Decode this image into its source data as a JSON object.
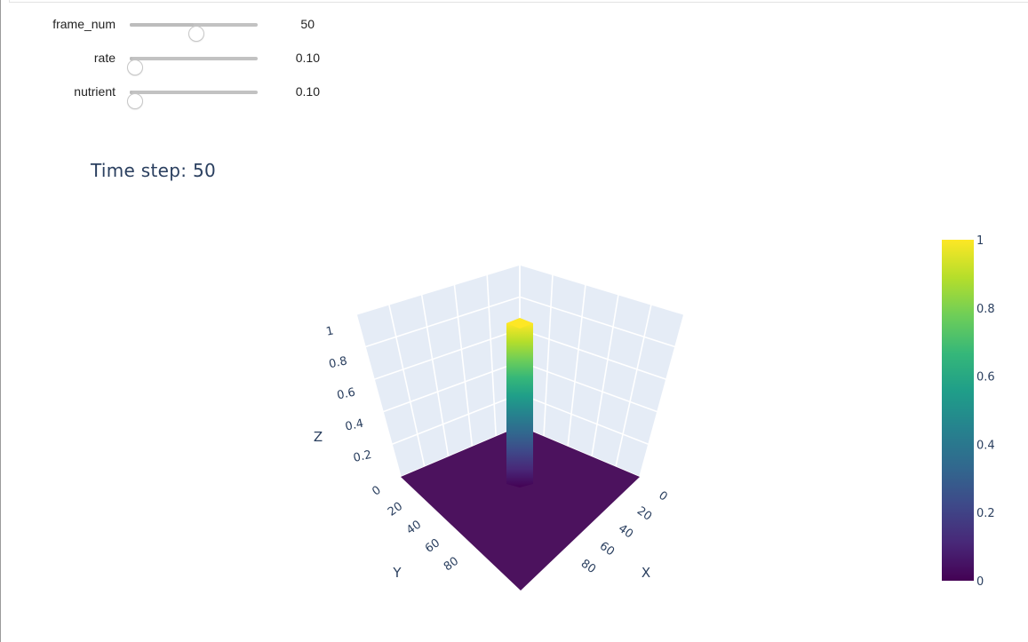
{
  "controls": [
    {
      "label": "frame_num",
      "value": "50",
      "fraction": 0.5
    },
    {
      "label": "rate",
      "value": "0.10",
      "fraction": 0.02
    },
    {
      "label": "nutrient",
      "value": "0.10",
      "fraction": 0.02
    }
  ],
  "plot_title": "Time step: 50",
  "colors": {
    "viridis": [
      "#440154",
      "#482878",
      "#3e4989",
      "#31688e",
      "#26828e",
      "#1f9e89",
      "#35b779",
      "#6ece58",
      "#b5de2b",
      "#fde725"
    ],
    "pane": "#e5ecf6",
    "grid": "#ffffff",
    "text": "#2a3f5f"
  },
  "chart_data": {
    "type": "surface",
    "title": "Time step: 50",
    "surface": "field equal to 0 everywhere on the grid except a single square column of value 1 at the grid centre",
    "x_range": [
      0,
      99
    ],
    "y_range": [
      0,
      99
    ],
    "z_range": [
      0,
      1
    ],
    "peak_z": 1,
    "base_z": 0,
    "x_ticks": [
      "0",
      "20",
      "40",
      "60",
      "80"
    ],
    "y_ticks": [
      "0",
      "20",
      "40",
      "60",
      "80"
    ],
    "z_ticks": [
      "0",
      "0.2",
      "0.4",
      "0.6",
      "0.8",
      "1"
    ],
    "xlabel": "X",
    "ylabel": "Y",
    "zlabel": "Z",
    "colorscale": "Viridis",
    "colorbar": {
      "ticks": [
        "0",
        "0.2",
        "0.4",
        "0.6",
        "0.8",
        "1"
      ],
      "range": [
        0,
        1
      ]
    },
    "grid": true
  }
}
